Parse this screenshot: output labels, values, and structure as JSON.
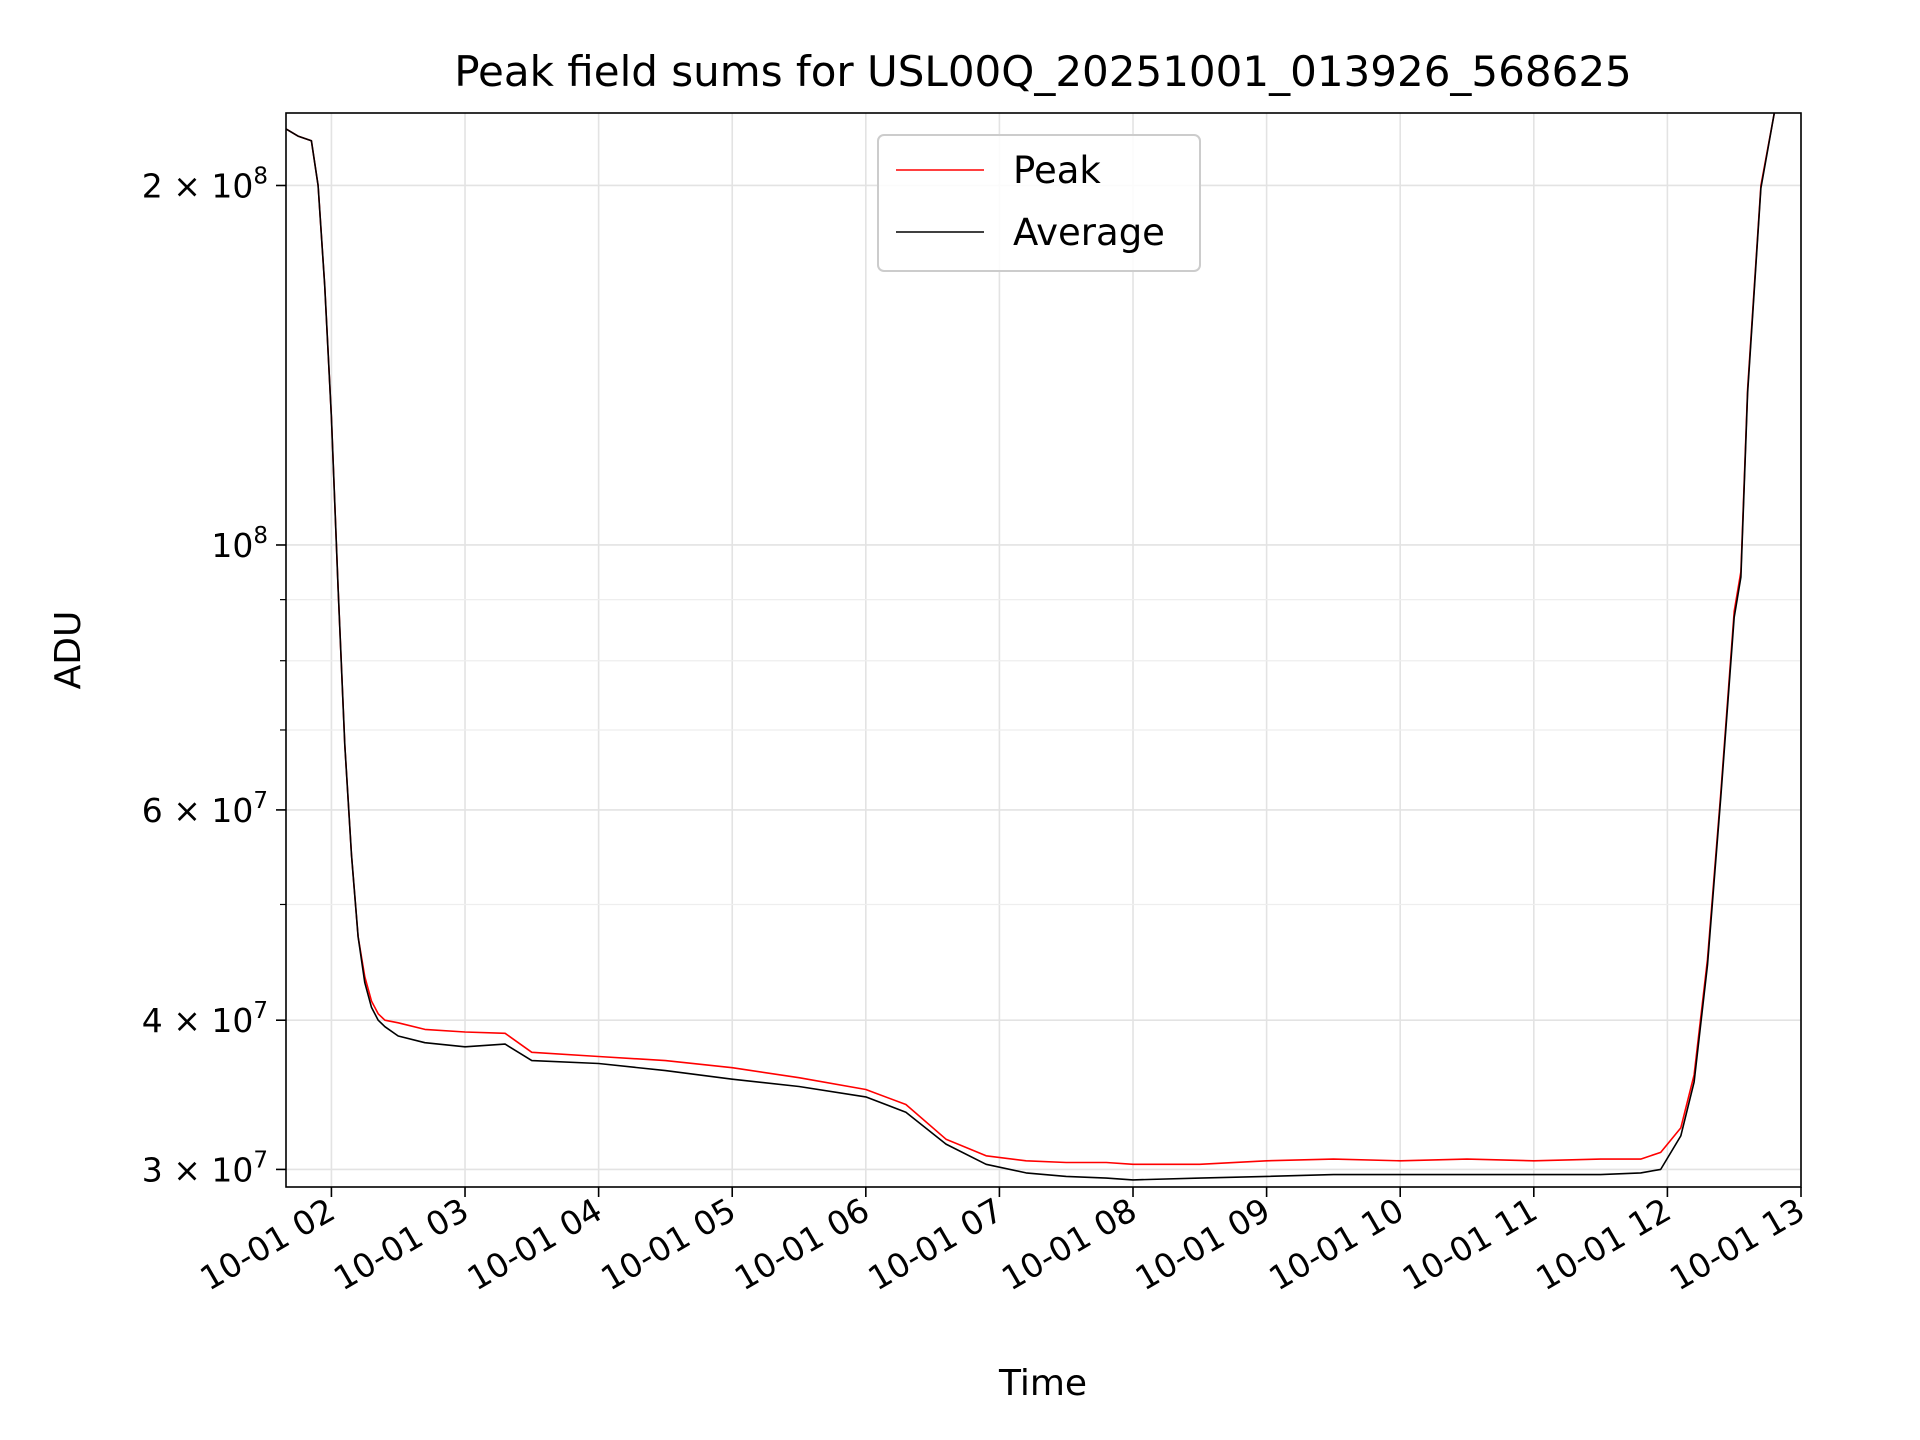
{
  "chart_data": {
    "type": "line",
    "title": "Peak field sums for USL00Q_20251001_013926_568625",
    "xlabel": "Time",
    "ylabel": "ADU",
    "yscale": "log",
    "xlim": [
      1.66,
      13.0
    ],
    "ylim": [
      29000000.0,
      230000000.0
    ],
    "grid": true,
    "legend_loc": "upper center",
    "x_ticks": [
      {
        "value": 2,
        "label": "10-01 02"
      },
      {
        "value": 3,
        "label": "10-01 03"
      },
      {
        "value": 4,
        "label": "10-01 04"
      },
      {
        "value": 5,
        "label": "10-01 05"
      },
      {
        "value": 6,
        "label": "10-01 06"
      },
      {
        "value": 7,
        "label": "10-01 07"
      },
      {
        "value": 8,
        "label": "10-01 08"
      },
      {
        "value": 9,
        "label": "10-01 09"
      },
      {
        "value": 10,
        "label": "10-01 10"
      },
      {
        "value": 11,
        "label": "10-01 11"
      },
      {
        "value": 12,
        "label": "10-01 12"
      },
      {
        "value": 13,
        "label": "10-01 13"
      }
    ],
    "y_ticks": [
      {
        "value": 30000000,
        "mantissa": "3",
        "exp": "7"
      },
      {
        "value": 40000000,
        "mantissa": "4",
        "exp": "7"
      },
      {
        "value": 60000000,
        "mantissa": "6",
        "exp": "7"
      },
      {
        "value": 100000000,
        "mantissa": "",
        "exp": "8"
      },
      {
        "value": 200000000,
        "mantissa": "2",
        "exp": "8"
      }
    ],
    "y_minor_ticks": [
      50000000,
      70000000,
      80000000,
      90000000
    ],
    "times_label": "Time",
    "series": [
      {
        "name": "Peak",
        "color": "#ff0000",
        "x": [
          1.66,
          1.75,
          1.85,
          1.9,
          1.95,
          2.0,
          2.05,
          2.1,
          2.15,
          2.2,
          2.25,
          2.3,
          2.35,
          2.4,
          2.5,
          2.7,
          3.0,
          3.3,
          3.5,
          4.0,
          4.5,
          5.0,
          5.5,
          6.0,
          6.3,
          6.6,
          6.9,
          7.2,
          7.5,
          7.8,
          8.0,
          8.5,
          9.0,
          9.5,
          10.0,
          10.5,
          11.0,
          11.5,
          11.8,
          11.95,
          12.1,
          12.2,
          12.3,
          12.4,
          12.5,
          12.55,
          12.6,
          12.7,
          12.8
        ],
        "values": [
          223000000,
          220000000,
          218000000,
          200000000,
          165000000,
          128000000,
          92000000,
          68000000,
          55000000,
          47000000,
          43500000,
          41500000,
          40500000,
          40000000,
          39800000,
          39300000,
          39100000,
          39000000,
          37600000,
          37300000,
          37000000,
          36500000,
          35800000,
          35000000,
          34000000,
          31800000,
          30800000,
          30500000,
          30400000,
          30400000,
          30300000,
          30300000,
          30500000,
          30600000,
          30500000,
          30600000,
          30500000,
          30600000,
          30600000,
          31000000,
          32500000,
          36000000,
          45000000,
          62000000,
          88000000,
          95000000,
          135000000,
          200000000,
          230000000
        ]
      },
      {
        "name": "Average",
        "color": "#000000",
        "x": [
          1.66,
          1.75,
          1.85,
          1.9,
          1.95,
          2.0,
          2.05,
          2.1,
          2.15,
          2.2,
          2.25,
          2.3,
          2.35,
          2.4,
          2.5,
          2.7,
          3.0,
          3.3,
          3.5,
          4.0,
          4.5,
          5.0,
          5.5,
          6.0,
          6.3,
          6.6,
          6.9,
          7.2,
          7.5,
          7.8,
          8.0,
          8.5,
          9.0,
          9.5,
          10.0,
          10.5,
          11.0,
          11.5,
          11.8,
          11.95,
          12.1,
          12.2,
          12.3,
          12.4,
          12.5,
          12.55,
          12.6,
          12.7,
          12.8
        ],
        "values": [
          223000000,
          220000000,
          218000000,
          200000000,
          165000000,
          128000000,
          92000000,
          68000000,
          55000000,
          47000000,
          43000000,
          41000000,
          40000000,
          39500000,
          38800000,
          38300000,
          38000000,
          38200000,
          37000000,
          36800000,
          36300000,
          35700000,
          35200000,
          34500000,
          33500000,
          31500000,
          30300000,
          29800000,
          29600000,
          29500000,
          29400000,
          29500000,
          29600000,
          29700000,
          29700000,
          29700000,
          29700000,
          29700000,
          29800000,
          30000000,
          32000000,
          35500000,
          44500000,
          61500000,
          87000000,
          94000000,
          134000000,
          199000000,
          230000000
        ]
      }
    ]
  }
}
